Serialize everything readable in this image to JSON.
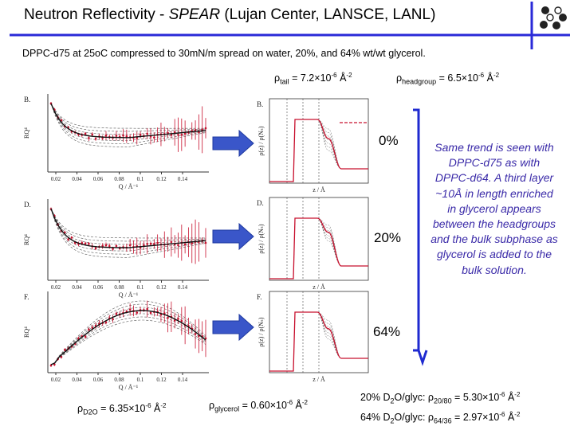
{
  "title": {
    "prefix": "Neutron Reflectivity - ",
    "italic": "SPEAR",
    "suffix": " (Lujan Center, LANSCE, LANL)"
  },
  "subtitle": "DPPC-d75 at 25oC compressed to 30mN/m spread on water, 20%, and 64% wt/wt glycerol.",
  "rho_tail": {
    "sub": "tail",
    "mid": " = 7.2×10",
    "sup": "-6",
    "unit": " Å",
    "unitsup": "-2"
  },
  "rho_headgroup": {
    "sub": "headgroup",
    "mid": " = 6.5×10",
    "sup": "-6",
    "unit": " Å",
    "unitsup": "-2"
  },
  "rho_d2o": {
    "sub": "D2O",
    "mid": " = 6.35×10",
    "sup": "-6",
    "unit": " Å",
    "unitsup": "-2"
  },
  "rho_glycerol": {
    "sub": "glycerol",
    "mid": " = 0.60×10",
    "sup": "-6",
    "unit": " Å",
    "unitsup": "-2"
  },
  "glyc20": {
    "pre": "20% D",
    "sub2": "2",
    "mid": "O/glyc: ",
    "rho_sub": "20/80",
    "val": " = 5.30×10",
    "sup": "-6",
    "unit": " Å",
    "unitsup": "-2"
  },
  "glyc64": {
    "pre": "64% D",
    "sub2": "2",
    "mid": "O/glyc: ",
    "rho_sub": "64/36",
    "val": " = 2.97×10",
    "sup": "-6",
    "unit": " Å",
    "unitsup": "-2"
  },
  "percent_labels": [
    "0%",
    "20%",
    "64%"
  ],
  "note": "Same trend is seen with DPPC-d75 as with DPPC-d64. A third layer ~10Å in length enriched in glycerol appears between the headgroups and the bulk subphase as glycerol is added to the bulk solution.",
  "panels_left": [
    {
      "letter": "B.",
      "ylabel": "RQ⁴",
      "xlabel": "Q / Å⁻¹",
      "ticks": [
        "0.02",
        "0.04",
        "0.06",
        "0.08",
        "0.1",
        "0.12",
        "0.14"
      ]
    },
    {
      "letter": "D.",
      "ylabel": "RQ⁴",
      "xlabel": "Q / Å⁻¹",
      "ticks": [
        "0.02",
        "0.04",
        "0.06",
        "0.08",
        "0.1",
        "0.12",
        "0.14"
      ]
    },
    {
      "letter": "F.",
      "ylabel": "RQ⁴",
      "xlabel": "Q / Å⁻¹",
      "ticks": [
        "0.02",
        "0.04",
        "0.06",
        "0.08",
        "0.1",
        "0.12",
        "0.14"
      ]
    }
  ],
  "panels_right": [
    {
      "letter": "B.",
      "ylabel": "ρ(z) / ρ(Nₛ)",
      "xlabel": "z / Å"
    },
    {
      "letter": "D.",
      "ylabel": "ρ(z) / ρ(Nₛ)",
      "xlabel": "z / Å"
    },
    {
      "letter": "F.",
      "ylabel": "ρ(z) / ρ(Nₛ)",
      "xlabel": "z / Å"
    }
  ],
  "colors": {
    "arrow": "#3a56c9",
    "logo_line": "#2a2ad8",
    "rule": "#1f2ad0",
    "data": "#c8102e",
    "note": "#3a2aa8"
  }
}
